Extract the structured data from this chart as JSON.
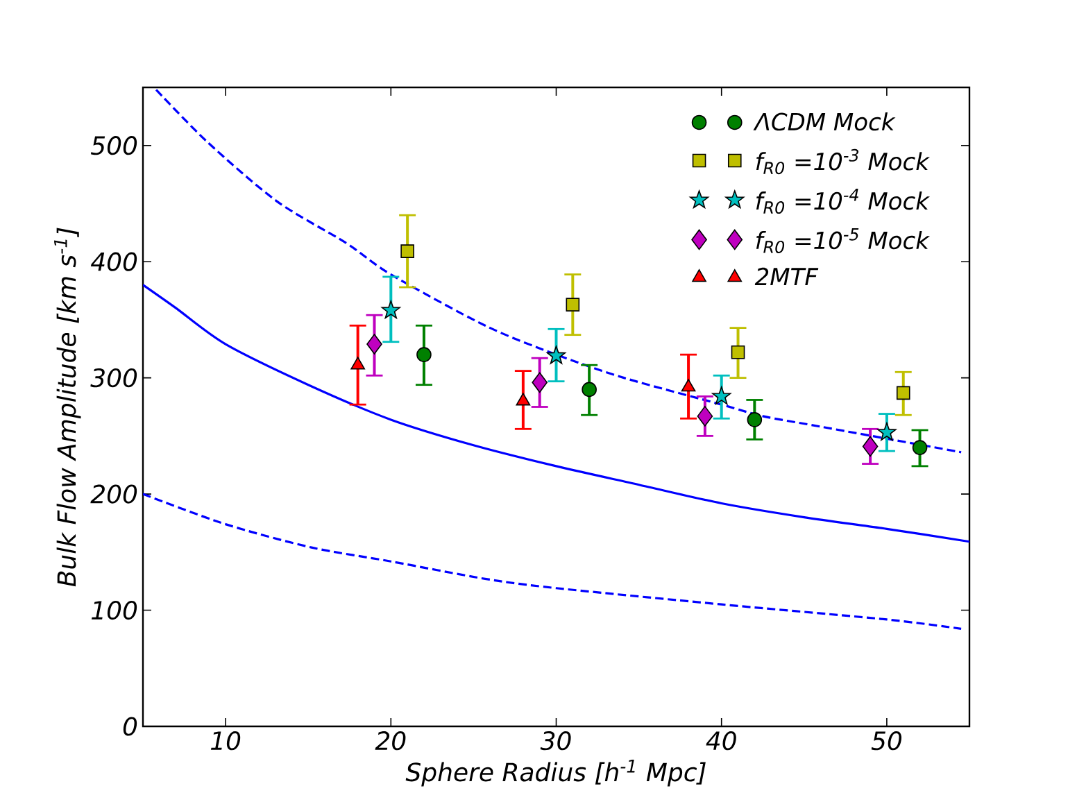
{
  "chart_data": {
    "type": "scatter",
    "xlabel": "Sphere Radius [h$^{-1}$ Mpc]",
    "ylabel": "Bulk Flow Amplitude [km s$^{-1}$]",
    "xlim": [
      5,
      55
    ],
    "ylim": [
      0,
      550
    ],
    "xticks": [
      10,
      20,
      30,
      40,
      50
    ],
    "yticks": [
      0,
      100,
      200,
      300,
      400,
      500
    ],
    "legend": "top right",
    "series": [
      {
        "type": "line",
        "color": "#0000ff",
        "line_style": "dashed",
        "marker": "none",
        "x": [
          5.8,
          8.9,
          13.1,
          17.3,
          20,
          25.7,
          30,
          34.1,
          40,
          42.5,
          46,
          54.5
        ],
        "values": [
          548,
          503,
          452,
          416,
          389,
          345,
          320,
          300,
          277,
          267,
          258,
          236
        ]
      },
      {
        "type": "line",
        "color": "#0000ff",
        "line_style": "solid",
        "marker": "none",
        "x": [
          5,
          7,
          10,
          15,
          20,
          25,
          30,
          35,
          40,
          45,
          50,
          55
        ],
        "values": [
          380,
          360,
          329,
          294,
          264,
          242,
          224,
          208,
          192,
          180,
          170,
          159
        ]
      },
      {
        "type": "line",
        "color": "#0000ff",
        "line_style": "dashed",
        "marker": "none",
        "x": [
          5,
          10,
          15.2,
          20,
          25.7,
          30,
          40,
          50,
          54.5
        ],
        "values": [
          200,
          174,
          154,
          142,
          127,
          119,
          105,
          92,
          84
        ]
      },
      {
        "name": "ΛCDM Mock",
        "color": "#008000",
        "marker": "circle",
        "x": [
          22,
          32,
          42,
          52
        ],
        "values": [
          320,
          290,
          264,
          240
        ],
        "errors": [
          [
            294,
            345
          ],
          [
            268,
            311
          ],
          [
            247,
            281
          ],
          [
            224,
            255
          ]
        ]
      },
      {
        "name": "f$_{R0}$ =10$^{-3}$  Mock",
        "color": "#bfbf00",
        "marker": "square",
        "x": [
          21,
          31,
          41,
          51
        ],
        "values": [
          409,
          363,
          322,
          287
        ],
        "errors": [
          [
            378,
            440
          ],
          [
            337,
            389
          ],
          [
            300,
            343
          ],
          [
            268,
            305
          ]
        ]
      },
      {
        "name": "f$_{R0}$ =10$^{-4}$  Mock",
        "color": "#00bfbf",
        "marker": "star",
        "x": [
          20,
          30,
          40,
          50
        ],
        "values": [
          358,
          319,
          284,
          253
        ],
        "errors": [
          [
            331,
            387
          ],
          [
            297,
            342
          ],
          [
            265,
            302
          ],
          [
            237,
            269
          ]
        ]
      },
      {
        "name": "f$_{R0}$ =10$^{-5}$  Mock",
        "color": "#bf00bf",
        "marker": "diamond",
        "x": [
          19,
          29,
          39,
          49
        ],
        "values": [
          329,
          296,
          267,
          241
        ],
        "errors": [
          [
            302,
            354
          ],
          [
            275,
            317
          ],
          [
            250,
            284
          ],
          [
            226,
            256
          ]
        ]
      },
      {
        "name": "2MTF",
        "color": "#ff0000",
        "marker": "triangle",
        "x": [
          18,
          28,
          38
        ],
        "values": [
          311,
          280,
          292
        ],
        "errors": [
          [
            277,
            345
          ],
          [
            256,
            306
          ],
          [
            265,
            320
          ]
        ]
      }
    ]
  }
}
